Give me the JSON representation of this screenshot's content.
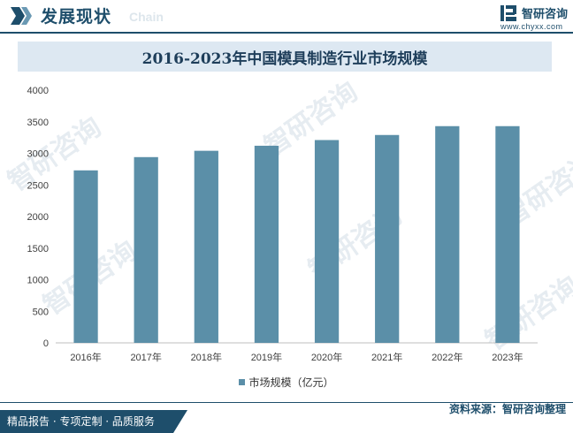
{
  "header": {
    "title": "发展现状",
    "subtitle": "Chain",
    "logo_name": "智研咨询",
    "logo_url": "www.chyxx.com"
  },
  "watermark_text": "智研咨询",
  "chart_data": {
    "type": "bar",
    "title": "2016-2023年中国模具制造行业市场规模",
    "categories": [
      "2016年",
      "2017年",
      "2018年",
      "2019年",
      "2020年",
      "2021年",
      "2022年",
      "2023年"
    ],
    "series": [
      {
        "name": "市场规模（亿元）",
        "values": [
          2730,
          2940,
          3040,
          3120,
          3210,
          3290,
          3430,
          3430
        ]
      }
    ],
    "ylim": [
      0,
      4000
    ],
    "yticks": [
      0,
      500,
      1000,
      1500,
      2000,
      2500,
      3000,
      3500,
      4000
    ],
    "grid": false,
    "legend": "bottom-center",
    "bar_color": "#5b8fa8"
  },
  "footer": {
    "tagline": "精品报告 · 专项定制 · 品质服务",
    "source": "资料来源：智研咨询整理"
  }
}
